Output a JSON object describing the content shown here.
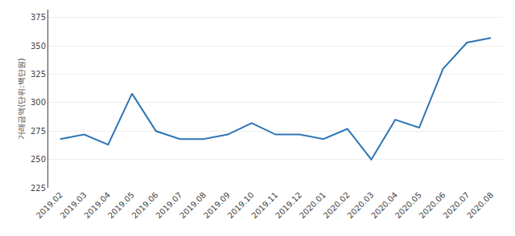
{
  "chart_data": {
    "type": "line",
    "ylabel": "거래금액(단위:백만원)",
    "categories": [
      "2019.02",
      "2019.03",
      "2019.04",
      "2019.05",
      "2019.06",
      "2019.07",
      "2019.08",
      "2019.09",
      "2019.10",
      "2019.11",
      "2019.12",
      "2020.01",
      "2020.02",
      "2020.03",
      "2020.04",
      "2020.05",
      "2020.06",
      "2020.07",
      "2020.08"
    ],
    "values": [
      268,
      272,
      263,
      308,
      275,
      268,
      268,
      272,
      282,
      272,
      272,
      268,
      277,
      250,
      285,
      278,
      330,
      353,
      357
    ],
    "color": "#2e75b6",
    "ylim": [
      225,
      382
    ],
    "yticks": [
      225,
      250,
      275,
      300,
      325,
      350,
      375
    ],
    "grid": true
  }
}
